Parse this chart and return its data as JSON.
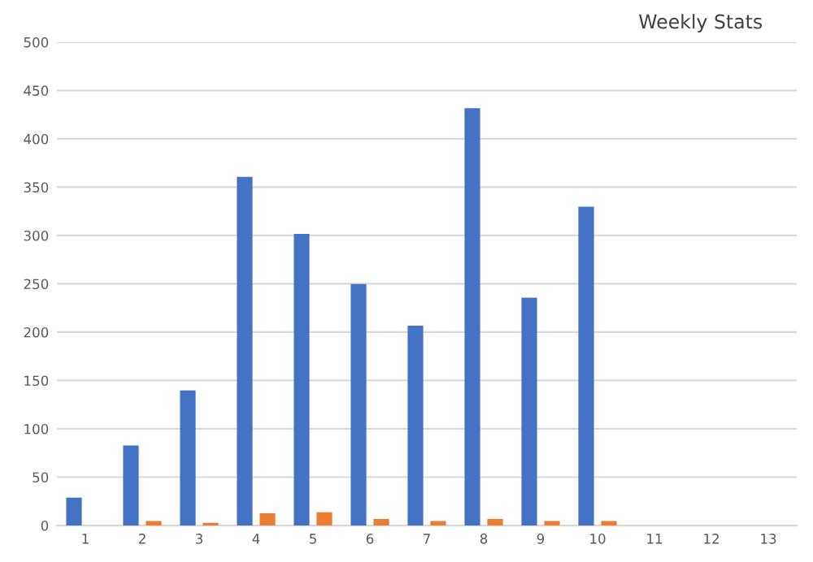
{
  "chart_data": {
    "type": "bar",
    "title": "Weekly Stats",
    "categories": [
      "1",
      "2",
      "3",
      "4",
      "5",
      "6",
      "7",
      "8",
      "9",
      "10",
      "11",
      "12",
      "13"
    ],
    "series": [
      {
        "color": "#4472c4",
        "values": [
          28,
          82,
          139,
          360,
          301,
          249,
          206,
          431,
          235,
          329,
          null,
          null,
          null
        ]
      },
      {
        "color": "#ed7d31",
        "values": [
          null,
          4,
          2,
          12,
          13,
          6,
          4,
          6,
          4,
          4,
          null,
          null,
          null
        ]
      }
    ],
    "ylim": [
      0,
      500
    ],
    "yticks": [
      0,
      50,
      100,
      150,
      200,
      250,
      300,
      350,
      400,
      450,
      500
    ],
    "grid": "y"
  }
}
